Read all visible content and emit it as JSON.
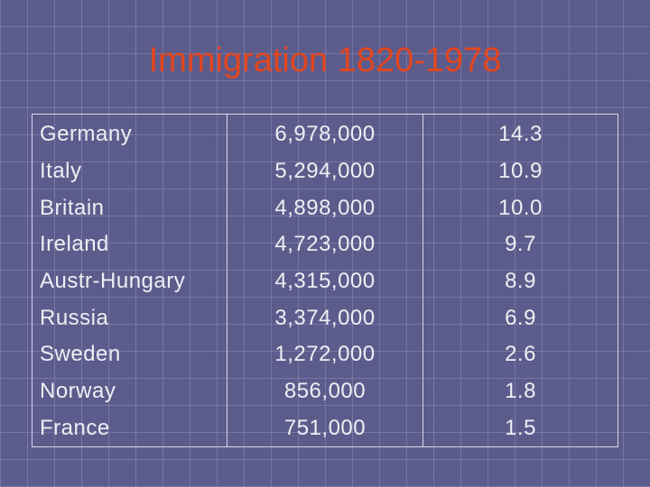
{
  "title": "Immigration 1820-1978",
  "table": {
    "rows": [
      [
        "Germany",
        "6,978,000",
        "14.3"
      ],
      [
        "Italy",
        "5,294,000",
        "10.9"
      ],
      [
        "Britain",
        "4,898,000",
        "10.0"
      ],
      [
        "Ireland",
        "4,723,000",
        "9.7"
      ],
      [
        "Austr-Hungary",
        "4,315,000",
        "8.9"
      ],
      [
        "Russia",
        "3,374,000",
        "6.9"
      ],
      [
        "Sweden",
        "1,272,000",
        "2.6"
      ],
      [
        "Norway",
        "856,000",
        "1.8"
      ],
      [
        "France",
        "751,000",
        "1.5"
      ]
    ]
  }
}
